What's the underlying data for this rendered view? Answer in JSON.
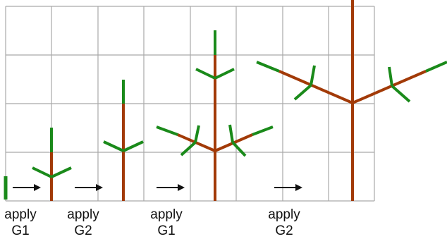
{
  "colors": {
    "grid": "#a9a9a9",
    "stem": "#a23a07",
    "leaf": "#1a8a1a",
    "arrow": "#111111",
    "text": "#111111"
  },
  "steps": [
    {
      "line1": "apply",
      "line2": "G1"
    },
    {
      "line1": "apply",
      "line2": "G2"
    },
    {
      "line1": "apply",
      "line2": "G1"
    },
    {
      "line1": "apply",
      "line2": "G2"
    }
  ]
}
